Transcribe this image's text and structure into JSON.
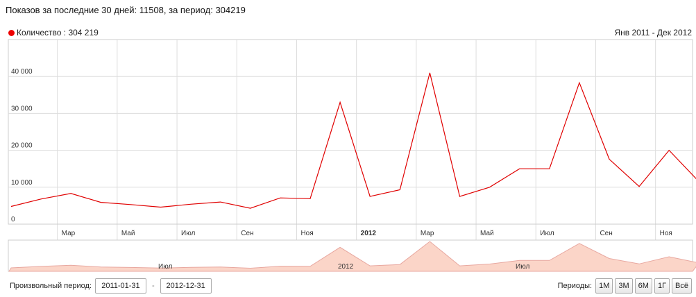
{
  "header": {
    "stats_text": "Показов за последние 30 дней: 11508, за период: 304219"
  },
  "legend": {
    "series_label": "Количество : 304 219",
    "color": "#e00000"
  },
  "range_label": "Янв 2011 - Дек 2012",
  "navigator": {
    "labels": [
      "Июл",
      "2012",
      "Июл"
    ]
  },
  "controls": {
    "custom_period_label": "Произвольный период:",
    "date_from": "2011-01-31",
    "date_separator": "-",
    "date_to": "2012-12-31",
    "periods_label": "Периоды:",
    "period_buttons": [
      "1М",
      "3М",
      "6М",
      "1Г",
      "Всё"
    ]
  },
  "chart_data": {
    "type": "line",
    "x": [
      "2011-01",
      "2011-02",
      "2011-03",
      "2011-04",
      "2011-05",
      "2011-06",
      "2011-07",
      "2011-08",
      "2011-09",
      "2011-10",
      "2011-11",
      "2011-12",
      "2012-01",
      "2012-02",
      "2012-03",
      "2012-04",
      "2012-05",
      "2012-06",
      "2012-07",
      "2012-08",
      "2012-09",
      "2012-10",
      "2012-11",
      "2012-12"
    ],
    "series": [
      {
        "name": "Количество",
        "color": "#e00000",
        "values": [
          4800,
          6800,
          8300,
          5900,
          5300,
          4600,
          5400,
          6000,
          4300,
          7100,
          6900,
          33000,
          7500,
          9300,
          41000,
          7500,
          10000,
          15000,
          15000,
          38300,
          17600,
          10200,
          20000,
          11500
        ]
      }
    ],
    "x_tick_labels": [
      "Мар",
      "Май",
      "Июл",
      "Сен",
      "Ноя",
      "2012",
      "Мар",
      "Май",
      "Июл",
      "Сен",
      "Ноя"
    ],
    "y_tick_labels": [
      "0",
      "10 000",
      "20 000",
      "30 000",
      "40 000"
    ],
    "y_ticks": [
      0,
      10000,
      20000,
      30000,
      40000
    ],
    "ylim": [
      0,
      50000
    ],
    "grid": true,
    "legend_position": "top-left"
  }
}
